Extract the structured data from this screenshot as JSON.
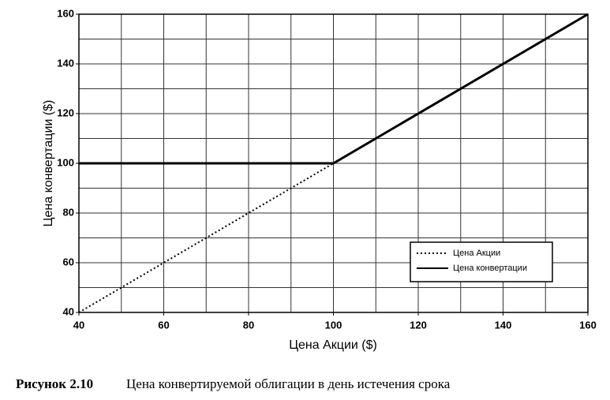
{
  "chart_data": {
    "type": "line",
    "x_label": "Цена Акции ($)",
    "y_label": "Цена конвертации ($)",
    "series": [
      {
        "name": "Цена Акции",
        "color": "#000000",
        "style": "dotted",
        "x": [
          40,
          100
        ],
        "values": [
          40,
          100
        ]
      },
      {
        "name": "Цена конвертации",
        "color": "#000000",
        "style": "solid",
        "x": [
          40,
          100,
          160
        ],
        "values": [
          100,
          100,
          160
        ]
      }
    ],
    "xlim": [
      40,
      160
    ],
    "ylim": [
      40,
      160
    ],
    "xticks": [
      40,
      60,
      80,
      100,
      120,
      140,
      160
    ],
    "yticks": [
      40,
      60,
      80,
      100,
      120,
      140,
      160
    ],
    "xgrid": [
      40,
      50,
      60,
      70,
      80,
      90,
      100,
      110,
      120,
      130,
      140,
      150,
      160
    ],
    "ygrid": [
      40,
      50,
      60,
      70,
      80,
      90,
      100,
      110,
      120,
      130,
      140,
      150,
      160
    ],
    "grid": true,
    "legend": "lower right"
  },
  "caption": {
    "label": "Рисунок 2.10",
    "text": "Цена конвертируемой облигации в день истечения срока"
  }
}
